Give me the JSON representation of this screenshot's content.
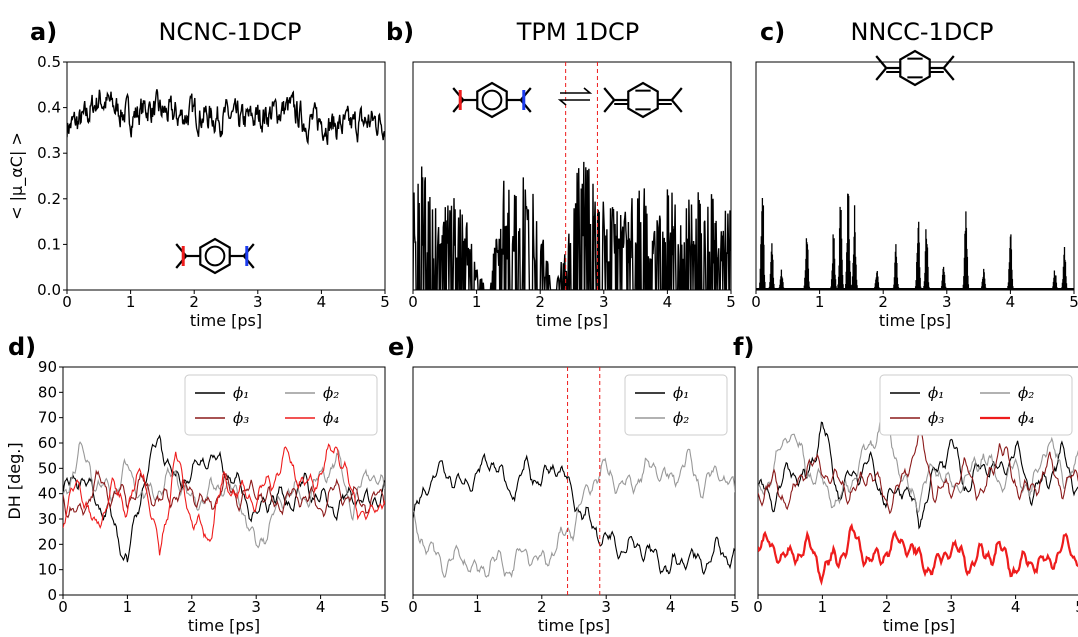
{
  "chart_data": [
    {
      "panel": "a)",
      "title": "NCNC-1DCP",
      "type": "line",
      "xlabel": "time [ps]",
      "ylabel": "< |μ_αC| >",
      "xlim": [
        0,
        5
      ],
      "ylim": [
        0,
        0.5
      ],
      "xticks": [
        "0",
        "1",
        "2",
        "3",
        "4",
        "5"
      ],
      "yticks": [
        "0.0",
        "0.1",
        "0.2",
        "0.3",
        "0.4",
        "0.5"
      ],
      "series": [
        {
          "color": "#000000",
          "style": "noisy",
          "x": [
            0,
            0.25,
            0.5,
            0.75,
            1.0,
            1.25,
            1.5,
            1.75,
            2.0,
            2.25,
            2.5,
            2.75,
            3.0,
            3.25,
            3.5,
            3.75,
            4.0,
            4.25,
            4.5,
            4.75,
            5.0
          ],
          "y": [
            0.36,
            0.37,
            0.42,
            0.4,
            0.38,
            0.4,
            0.39,
            0.38,
            0.39,
            0.38,
            0.38,
            0.37,
            0.38,
            0.39,
            0.4,
            0.37,
            0.37,
            0.36,
            0.36,
            0.37,
            0.37
          ]
        }
      ],
      "molecule": "capped-ring-colored"
    },
    {
      "panel": "b)",
      "title": "TPM 1DCP",
      "type": "line",
      "xlabel": "time [ps]",
      "xlim": [
        0,
        5
      ],
      "ylim": [
        0,
        0.5
      ],
      "xticks": [
        "0",
        "1",
        "2",
        "3",
        "4",
        "5"
      ],
      "vlines": [
        2.4,
        2.9
      ],
      "series": [
        {
          "color": "#000000",
          "style": "spiky",
          "x": [
            0,
            0.2,
            0.4,
            0.6,
            0.8,
            1.0,
            1.2,
            1.4,
            1.6,
            1.8,
            2.0,
            2.2,
            2.4,
            2.6,
            2.8,
            3.0,
            3.2,
            3.4,
            3.6,
            3.8,
            4.0,
            4.2,
            4.4,
            4.6,
            4.8,
            5.0
          ],
          "y": [
            0.19,
            0.23,
            0.16,
            0.17,
            0.14,
            0.05,
            0.0,
            0.2,
            0.17,
            0.22,
            0.13,
            0.0,
            0.08,
            0.24,
            0.21,
            0.16,
            0.14,
            0.15,
            0.21,
            0.11,
            0.19,
            0.19,
            0.16,
            0.21,
            0.13,
            0.16
          ]
        }
      ],
      "molecule": "capped-ring-equilibrium"
    },
    {
      "panel": "c)",
      "title": "NNCC-1DCP",
      "type": "line",
      "xlabel": "time [ps]",
      "xlim": [
        0,
        5
      ],
      "ylim": [
        0,
        0.5
      ],
      "xticks": [
        "0",
        "1",
        "2",
        "3",
        "4",
        "5"
      ],
      "spikes": [
        [
          0.1,
          0.3
        ],
        [
          0.25,
          0.11
        ],
        [
          0.4,
          0.05
        ],
        [
          0.8,
          0.16
        ],
        [
          1.22,
          0.15
        ],
        [
          1.33,
          0.22
        ],
        [
          1.45,
          0.24
        ],
        [
          1.55,
          0.19
        ],
        [
          1.9,
          0.05
        ],
        [
          2.2,
          0.11
        ],
        [
          2.55,
          0.17
        ],
        [
          2.68,
          0.15
        ],
        [
          2.95,
          0.06
        ],
        [
          3.3,
          0.21
        ],
        [
          3.58,
          0.05
        ],
        [
          4.0,
          0.15
        ],
        [
          4.7,
          0.05
        ],
        [
          4.85,
          0.1
        ]
      ],
      "molecule": "quinoid"
    },
    {
      "panel": "d)",
      "type": "line",
      "xlabel": "time [ps]",
      "ylabel": "DH [deg.]",
      "xlim": [
        0,
        5
      ],
      "ylim": [
        0,
        90
      ],
      "xticks": [
        "0",
        "1",
        "2",
        "3",
        "4",
        "5"
      ],
      "yticks": [
        "0",
        "10",
        "20",
        "30",
        "40",
        "50",
        "60",
        "70",
        "80",
        "90"
      ],
      "series": [
        {
          "name": "ϕ₁",
          "color": "#000000",
          "x": [
            0,
            0.25,
            0.5,
            0.75,
            1.0,
            1.25,
            1.5,
            1.75,
            2.0,
            2.25,
            2.5,
            2.75,
            3.0,
            3.25,
            3.5,
            3.75,
            4.0,
            4.25,
            4.5,
            4.75,
            5.0
          ],
          "y": [
            40,
            48,
            38,
            30,
            13,
            45,
            62,
            44,
            48,
            55,
            50,
            42,
            30,
            40,
            36,
            44,
            38,
            34,
            40,
            36,
            42
          ]
        },
        {
          "name": "ϕ₂",
          "color": "#999999",
          "x": [
            0,
            0.25,
            0.5,
            0.75,
            1.0,
            1.25,
            1.5,
            1.75,
            2.0,
            2.25,
            2.5,
            2.75,
            3.0,
            3.25,
            3.5,
            3.75,
            4.0,
            4.25,
            4.5,
            4.75,
            5.0
          ],
          "y": [
            35,
            58,
            45,
            40,
            50,
            38,
            42,
            48,
            36,
            40,
            44,
            38,
            18,
            30,
            42,
            38,
            46,
            54,
            34,
            50,
            40
          ]
        },
        {
          "name": "ϕ₃",
          "color": "#8b1a1a",
          "x": [
            0,
            0.25,
            0.5,
            0.75,
            1.0,
            1.25,
            1.5,
            1.75,
            2.0,
            2.25,
            2.5,
            2.75,
            3.0,
            3.25,
            3.5,
            3.75,
            4.0,
            4.25,
            4.5,
            4.75,
            5.0
          ],
          "y": [
            38,
            30,
            45,
            40,
            38,
            44,
            36,
            40,
            42,
            34,
            44,
            38,
            42,
            36,
            38,
            40,
            34,
            42,
            38,
            36,
            40
          ]
        },
        {
          "name": "ϕ₄",
          "color": "#ee1c1c",
          "x": [
            0,
            0.25,
            0.5,
            0.75,
            1.0,
            1.25,
            1.5,
            1.75,
            2.0,
            2.25,
            2.5,
            2.75,
            3.0,
            3.25,
            3.5,
            3.75,
            4.0,
            4.25,
            4.5,
            4.75,
            5.0
          ],
          "y": [
            30,
            45,
            25,
            42,
            35,
            50,
            15,
            55,
            30,
            22,
            45,
            40,
            38,
            46,
            55,
            42,
            48,
            60,
            38,
            30,
            40
          ]
        }
      ],
      "legend": {
        "loc": "top-right",
        "ncol": 2
      }
    },
    {
      "panel": "e)",
      "type": "line",
      "xlabel": "time [ps]",
      "xlim": [
        0,
        5
      ],
      "ylim": [
        0,
        90
      ],
      "xticks": [
        "0",
        "1",
        "2",
        "3",
        "4",
        "5"
      ],
      "vlines": [
        2.4,
        2.9
      ],
      "series": [
        {
          "name": "ϕ₁",
          "color": "#000000",
          "x": [
            0,
            0.25,
            0.5,
            0.75,
            1.0,
            1.25,
            1.5,
            1.75,
            2.0,
            2.25,
            2.5,
            2.75,
            3.0,
            3.25,
            3.5,
            3.75,
            4.0,
            4.25,
            4.5,
            4.75,
            5.0
          ],
          "y": [
            30,
            45,
            50,
            42,
            48,
            54,
            40,
            50,
            45,
            52,
            38,
            28,
            22,
            18,
            20,
            15,
            10,
            16,
            12,
            18,
            14
          ]
        },
        {
          "name": "ϕ₂",
          "color": "#999999",
          "x": [
            0,
            0.25,
            0.5,
            0.75,
            1.0,
            1.25,
            1.5,
            1.75,
            2.0,
            2.25,
            2.5,
            2.75,
            3.0,
            3.25,
            3.5,
            3.75,
            4.0,
            4.25,
            4.5,
            4.75,
            5.0
          ],
          "y": [
            28,
            18,
            12,
            16,
            8,
            14,
            10,
            18,
            12,
            20,
            28,
            44,
            50,
            42,
            46,
            52,
            44,
            54,
            42,
            50,
            40
          ]
        }
      ],
      "legend": {
        "loc": "top-right",
        "ncol": 1
      }
    },
    {
      "panel": "f)",
      "type": "line",
      "xlabel": "time [ps]",
      "xlim": [
        0,
        5
      ],
      "ylim": [
        0,
        90
      ],
      "xticks": [
        "0",
        "1",
        "2",
        "3",
        "4",
        "5"
      ],
      "series": [
        {
          "name": "ϕ₁",
          "color": "#000000",
          "x": [
            0,
            0.25,
            0.5,
            0.75,
            1.0,
            1.25,
            1.5,
            1.75,
            2.0,
            2.25,
            2.5,
            2.75,
            3.0,
            3.25,
            3.5,
            3.75,
            4.0,
            4.25,
            4.5,
            4.75,
            5.0
          ],
          "y": [
            42,
            38,
            50,
            44,
            68,
            40,
            48,
            52,
            36,
            44,
            30,
            48,
            60,
            42,
            52,
            48,
            58,
            40,
            46,
            56,
            38
          ]
        },
        {
          "name": "ϕ₂",
          "color": "#999999",
          "x": [
            0,
            0.25,
            0.5,
            0.75,
            1.0,
            1.25,
            1.5,
            1.75,
            2.0,
            2.25,
            2.5,
            2.75,
            3.0,
            3.25,
            3.5,
            3.75,
            4.0,
            4.25,
            4.5,
            4.75,
            5.0
          ],
          "y": [
            38,
            50,
            66,
            50,
            44,
            36,
            48,
            60,
            70,
            44,
            38,
            52,
            42,
            46,
            56,
            44,
            50,
            40,
            62,
            46,
            52
          ]
        },
        {
          "name": "ϕ₃",
          "color": "#8b1a1a",
          "x": [
            0,
            0.25,
            0.5,
            0.75,
            1.0,
            1.25,
            1.5,
            1.75,
            2.0,
            2.25,
            2.5,
            2.75,
            3.0,
            3.25,
            3.5,
            3.75,
            4.0,
            4.25,
            4.5,
            4.75,
            5.0
          ],
          "y": [
            40,
            44,
            36,
            52,
            50,
            44,
            40,
            50,
            36,
            44,
            64,
            40,
            42,
            50,
            38,
            60,
            44,
            40,
            52,
            42,
            48
          ]
        },
        {
          "name": "ϕ₄",
          "color": "#ee1c1c",
          "width": 2.2,
          "x": [
            0,
            0.25,
            0.5,
            0.75,
            1.0,
            1.25,
            1.5,
            1.75,
            2.0,
            2.25,
            2.5,
            2.75,
            3.0,
            3.25,
            3.5,
            3.75,
            4.0,
            4.25,
            4.5,
            4.75,
            5.0
          ],
          "y": [
            22,
            18,
            14,
            20,
            10,
            15,
            24,
            12,
            18,
            22,
            14,
            10,
            20,
            12,
            16,
            18,
            10,
            14,
            12,
            20,
            14
          ]
        }
      ],
      "legend": {
        "loc": "top-right",
        "ncol": 2
      }
    }
  ]
}
